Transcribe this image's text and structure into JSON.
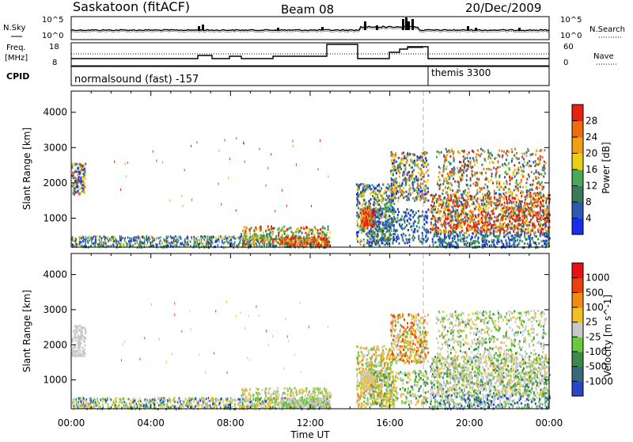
{
  "header": {
    "station": "Saskatoon (fitACF)",
    "beam": "Beam 08",
    "date": "20/Dec/2009"
  },
  "noise_panel": {
    "left_label": "N.Sky",
    "right_label": "N.Search",
    "left_ticks": [
      "10^5",
      "10^0"
    ],
    "right_ticks": [
      "10^5",
      "10^0"
    ]
  },
  "freq_panel": {
    "left_label_1": "Freq.",
    "left_label_2": "[MHz]",
    "left_ticks": [
      "18",
      "8"
    ],
    "right_label": "Nave",
    "right_ticks": [
      "60",
      "0"
    ]
  },
  "cpid_panel": {
    "label": "CPID",
    "programs": [
      {
        "name": "normalsound (fast) -157",
        "start_hour": 0,
        "end_hour": 18
      },
      {
        "name": "themis 3300",
        "start_hour": 18,
        "end_hour": 24
      }
    ]
  },
  "colors": {
    "power_scale": [
      "#1a2ee8",
      "#2a5bb0",
      "#3a7a58",
      "#4aa85a",
      "#e8d018",
      "#f0a014",
      "#f06a10",
      "#e82010"
    ],
    "velocity_scale": [
      "#2a46c8",
      "#3a6a7a",
      "#3a8a4a",
      "#6ac840",
      "#c8c8c8",
      "#f0c020",
      "#f08a10",
      "#e84010",
      "#e81010"
    ],
    "gap_line": "#b0b0b0"
  },
  "chart_data": [
    {
      "type": "heatmap",
      "title": "",
      "ylabel": "Slant Range [km]",
      "xlabel": "Time UT",
      "x_ticks": [
        "00:00",
        "04:00",
        "08:00",
        "12:00",
        "16:00",
        "20:00",
        "00:00"
      ],
      "xlim_hours": [
        0,
        24
      ],
      "y_ticks": [
        1000,
        2000,
        3000,
        4000
      ],
      "ylim": [
        180,
        4600
      ],
      "colorbar": {
        "label": "Power [dB]",
        "ticks": [
          "4",
          "8",
          "12",
          "16",
          "20",
          "24",
          "28"
        ],
        "range": [
          0,
          32
        ]
      }
    },
    {
      "type": "heatmap",
      "title": "",
      "ylabel": "Slant Range [km]",
      "xlabel": "Time UT",
      "x_ticks": [
        "00:00",
        "04:00",
        "08:00",
        "12:00",
        "16:00",
        "20:00",
        "00:00"
      ],
      "xlim_hours": [
        0,
        24
      ],
      "y_ticks": [
        1000,
        2000,
        3000,
        4000
      ],
      "ylim": [
        180,
        4600
      ],
      "colorbar": {
        "label": "Velocity [m s^-1]",
        "ticks": [
          "1000",
          "500",
          "100",
          "25",
          "-25",
          "-100",
          "-500",
          "-1000"
        ]
      }
    }
  ]
}
